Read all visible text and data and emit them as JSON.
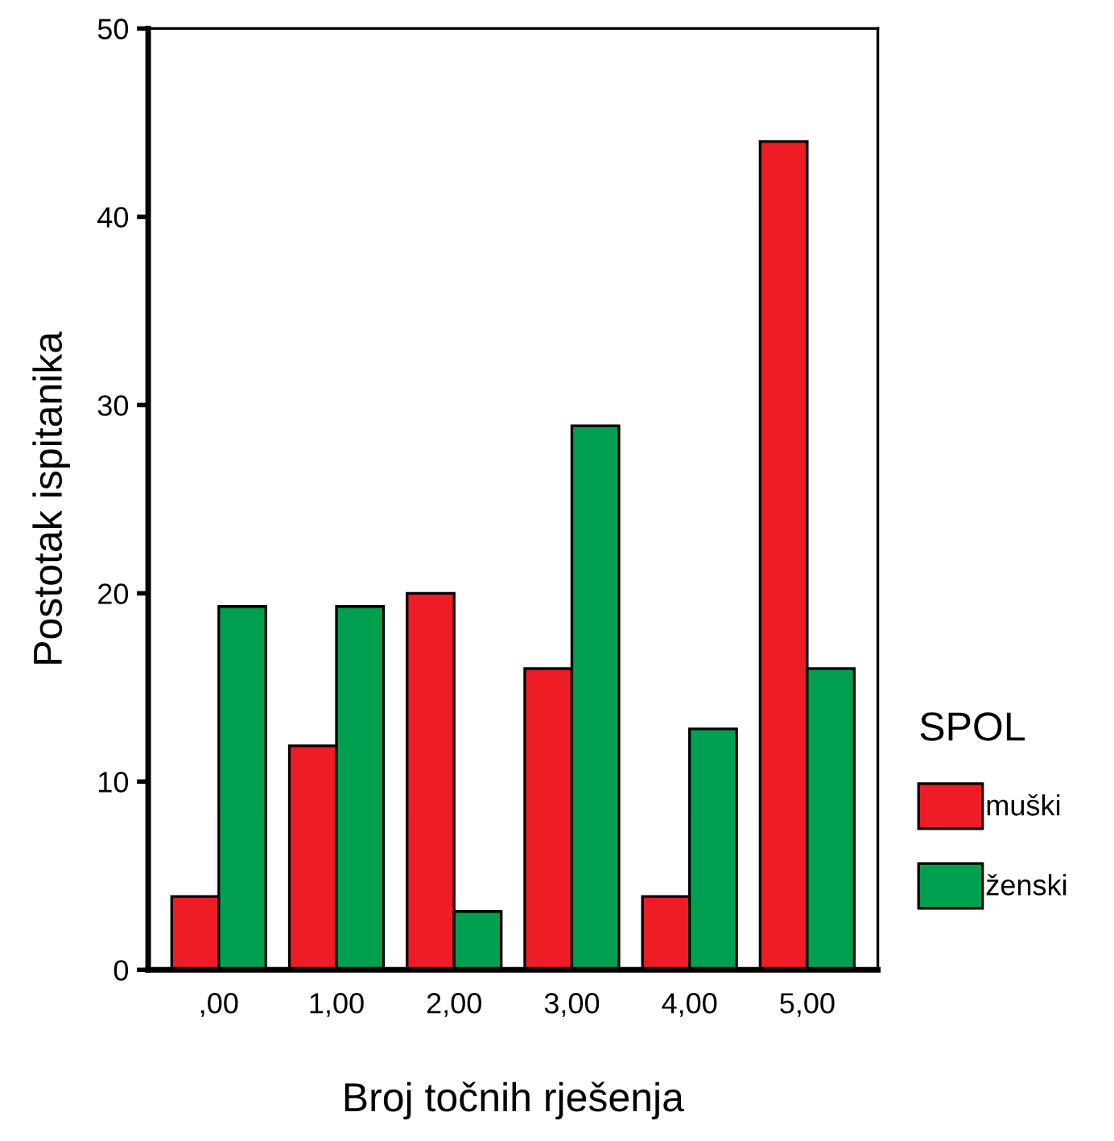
{
  "chart_data": {
    "type": "bar",
    "xlabel": "Broj točnih rješenja",
    "ylabel": "Postotak ispitanika",
    "legend_title": "SPOL",
    "categories": [
      ",00",
      "1,00",
      "2,00",
      "3,00",
      "4,00",
      "5,00"
    ],
    "series": [
      {
        "name": "muški",
        "color": "#ee1c25",
        "values": [
          3.9,
          11.9,
          20.0,
          16.0,
          3.9,
          44.0
        ]
      },
      {
        "name": "ženski",
        "color": "#00a050",
        "values": [
          19.3,
          19.3,
          3.1,
          28.9,
          12.8,
          16.0
        ]
      }
    ],
    "ylim": [
      0,
      50
    ],
    "yticks": [
      0,
      10,
      20,
      30,
      40,
      50
    ],
    "grid": false,
    "legend": "right"
  }
}
